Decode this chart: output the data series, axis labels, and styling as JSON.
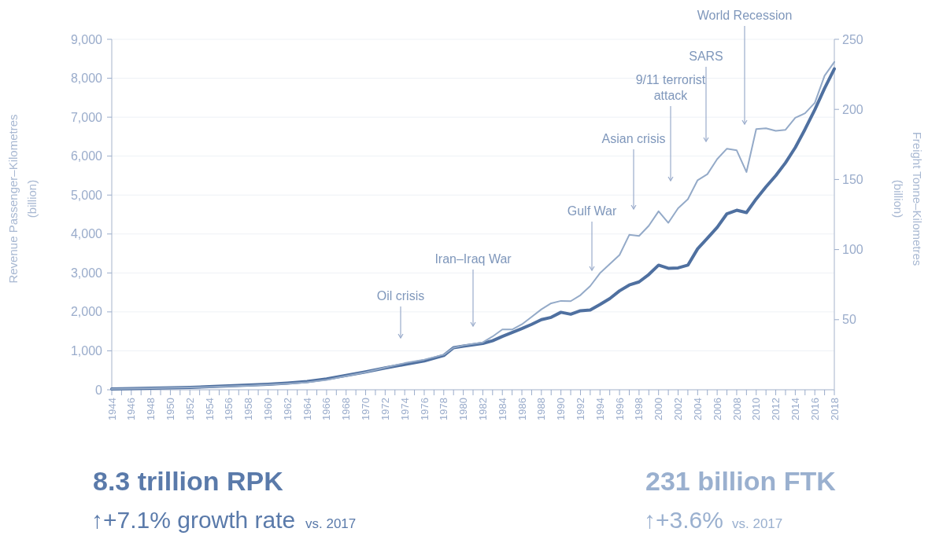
{
  "chart_data": {
    "type": "line",
    "ylabel": "Revenue Passenger–Kilometres (billion)",
    "y2label": "Freight Tonne–Kilometres (billion)",
    "xlim": [
      1944,
      2018
    ],
    "xticks": [
      1944,
      {
        "value": 1945,
        "label": null
      },
      1946,
      {
        "value": 1947,
        "label": null
      },
      1948,
      {
        "value": 1949,
        "label": null
      },
      1950,
      {
        "value": 1951,
        "label": null
      },
      1952,
      {
        "value": 1953,
        "label": null
      },
      1954,
      {
        "value": 1955,
        "label": null
      },
      1956,
      {
        "value": 1957,
        "label": null
      },
      1958,
      {
        "value": 1959,
        "label": null
      },
      1960,
      {
        "value": 1961,
        "label": null
      },
      1962,
      {
        "value": 1963,
        "label": null
      },
      1964,
      {
        "value": 1965,
        "label": null
      },
      1966,
      {
        "value": 1967,
        "label": null
      },
      1968,
      {
        "value": 1969,
        "label": null
      },
      1970,
      {
        "value": 1971,
        "label": null
      },
      1972,
      {
        "value": 1973,
        "label": null
      },
      1974,
      {
        "value": 1975,
        "label": null
      },
      1976,
      {
        "value": 1977,
        "label": null
      },
      1978,
      {
        "value": 1979,
        "label": null
      },
      1980,
      {
        "value": 1981,
        "label": null
      },
      1982,
      {
        "value": 1983,
        "label": null
      },
      1984,
      {
        "value": 1985,
        "label": null
      },
      1986,
      {
        "value": 1987,
        "label": null
      },
      1988,
      {
        "value": 1989,
        "label": null
      },
      1990,
      {
        "value": 1991,
        "label": null
      },
      1992,
      {
        "value": 1993,
        "label": null
      },
      1994,
      {
        "value": 1995,
        "label": null
      },
      1996,
      {
        "value": 1997,
        "label": null
      },
      1998,
      {
        "value": 1999,
        "label": null
      },
      2000,
      {
        "value": 2001,
        "label": null
      },
      2002,
      {
        "value": 2003,
        "label": null
      },
      2004,
      {
        "value": 2005,
        "label": null
      },
      2006,
      {
        "value": 2007,
        "label": null
      },
      2008,
      {
        "value": 2009,
        "label": null
      },
      2010,
      {
        "value": 2011,
        "label": null
      },
      2012,
      {
        "value": 2013,
        "label": null
      },
      2014,
      {
        "value": 2015,
        "label": null
      },
      2016,
      {
        "value": 2017,
        "label": null
      },
      2018
    ],
    "ylim": [
      0,
      9000
    ],
    "yticks": [
      {
        "value": 0,
        "label": "0"
      },
      {
        "value": 1000,
        "label": "1,000"
      },
      {
        "value": 2000,
        "label": "2,000"
      },
      {
        "value": 3000,
        "label": "3,000"
      },
      {
        "value": 4000,
        "label": "4,000"
      },
      {
        "value": 5000,
        "label": "5,000"
      },
      {
        "value": 6000,
        "label": "6,000"
      },
      {
        "value": 7000,
        "label": "7,000"
      },
      {
        "value": 8000,
        "label": "8,000"
      },
      {
        "value": 9000,
        "label": "9,000"
      }
    ],
    "y2lim": [
      0,
      250
    ],
    "y2ticks": [
      50,
      100,
      150,
      200,
      250
    ],
    "grid": "y",
    "series": [
      {
        "color": "#4f70a0",
        "x": [
          1944,
          1946,
          1948,
          1950,
          1952,
          1954,
          1956,
          1958,
          1960,
          1962,
          1964,
          1966,
          1968,
          1970,
          1972,
          1974,
          1976,
          1978,
          1979,
          1980,
          1982,
          1983,
          1984,
          1985,
          1986,
          1987,
          1988,
          1989,
          1990,
          1991,
          1992,
          1993,
          1994,
          1995,
          1996,
          1997,
          1998,
          1999,
          2000,
          2001,
          2002,
          2003,
          2004,
          2005,
          2006,
          2007,
          2008,
          2009,
          2010,
          2011,
          2012,
          2013,
          2014,
          2015,
          2016,
          2017,
          2018
        ],
        "values": [
          20,
          30,
          40,
          50,
          60,
          80,
          100,
          120,
          140,
          170,
          210,
          280,
          370,
          460,
          560,
          650,
          740,
          880,
          1080,
          1120,
          1190,
          1260,
          1370,
          1470,
          1570,
          1680,
          1800,
          1860,
          1990,
          1940,
          2030,
          2050,
          2190,
          2340,
          2540,
          2690,
          2770,
          2960,
          3200,
          3120,
          3130,
          3200,
          3620,
          3890,
          4170,
          4520,
          4610,
          4550,
          4900,
          5210,
          5500,
          5830,
          6220,
          6690,
          7190,
          7740,
          8240
        ]
      },
      {
        "color": "#94aac8",
        "axis": "y2",
        "x": [
          1944,
          1946,
          1948,
          1950,
          1952,
          1954,
          1956,
          1958,
          1960,
          1962,
          1964,
          1966,
          1968,
          1970,
          1972,
          1974,
          1976,
          1978,
          1979,
          1980,
          1982,
          1983,
          1984,
          1985,
          1986,
          1987,
          1988,
          1989,
          1990,
          1991,
          1992,
          1993,
          1994,
          1995,
          1996,
          1997,
          1998,
          1999,
          2000,
          2001,
          2002,
          2003,
          2004,
          2005,
          2006,
          2007,
          2008,
          2009,
          2010,
          2011,
          2012,
          2013,
          2014,
          2015,
          2016,
          2017,
          2018
        ],
        "values": [
          0.5,
          0.8,
          1.1,
          1.4,
          1.7,
          2,
          2.5,
          3,
          3.6,
          4.3,
          5.3,
          7,
          9.8,
          12.5,
          15.8,
          19,
          21.5,
          25,
          30,
          31.6,
          33.8,
          38,
          43,
          43,
          46.7,
          52,
          57.4,
          61.7,
          63.4,
          63.2,
          67.5,
          74,
          83.2,
          89.7,
          96.1,
          110.5,
          109.7,
          117,
          127.3,
          119.1,
          129.5,
          135.9,
          149.5,
          153.8,
          164.5,
          172,
          170.8,
          155.3,
          186,
          186.5,
          184.7,
          185.4,
          194,
          197.2,
          204.7,
          224,
          233.8
        ]
      }
    ],
    "annotations": [
      "Oil crisis",
      "Iran–Iraq War",
      "Gulf War",
      "Asian crisis",
      "9/11 terrorist attack",
      "SARS",
      "World Recession",
      "8.3 trillion RPK",
      "↑+7.1% growth rate",
      "vs. 2017",
      "231 billion FTK",
      "↑+3.6%",
      "vs. 2017"
    ]
  }
}
